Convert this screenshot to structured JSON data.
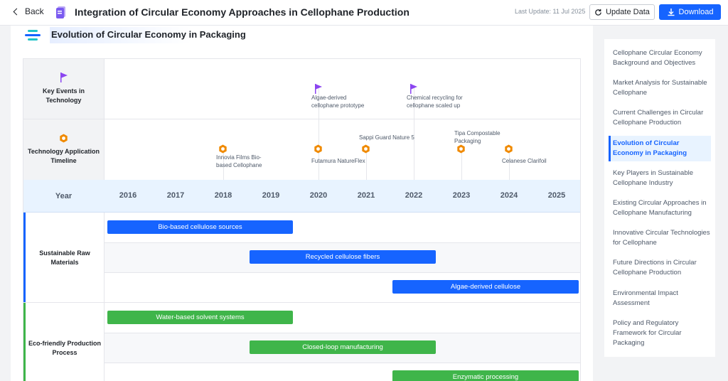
{
  "header": {
    "back_label": "Back",
    "title": "Integration of Circular Economy Approaches in Cellophane Production",
    "last_update": "Last Update: 11 Jul 2025",
    "update_label": "Update Data",
    "download_label": "Download"
  },
  "section": {
    "title": "Evolution of Circular Economy in Packaging"
  },
  "timeline": {
    "row_key_events": "Key Events in Technology",
    "row_application": "Technology Application Timeline",
    "year_label": "Year",
    "years": [
      "2016",
      "2017",
      "2018",
      "2019",
      "2020",
      "2021",
      "2022",
      "2023",
      "2024",
      "2025"
    ],
    "key_events": [
      {
        "line1": "Algae-derived",
        "line2": "cellophane prototype"
      },
      {
        "line1": "Chemical recycling for",
        "line2": "cellophane scaled up"
      }
    ],
    "applications": [
      {
        "line1": "Innovia Films Bio-",
        "line2": "based Cellophane"
      },
      {
        "line1": "Futamura NatureFlex",
        "line2": ""
      },
      {
        "line1": "Sappi Guard Nature 5",
        "line2": ""
      },
      {
        "line1": "Tipa Compostable",
        "line2": "Packaging"
      },
      {
        "line1": "Celanese Clarifoil",
        "line2": ""
      }
    ],
    "categories": [
      {
        "label": "Sustainable Raw Materials",
        "color": "#1664ff",
        "bars": [
          "Bio-based cellulose sources",
          "Recycled cellulose fibers",
          "Algae-derived cellulose"
        ]
      },
      {
        "label": "Eco-friendly Production Process",
        "color": "#3fb54a",
        "bars": [
          "Water-based solvent systems",
          "Closed-loop manufacturing",
          "Enzymatic processing"
        ]
      }
    ],
    "colors": {
      "flag": "#8b45f0",
      "hex": "#f08a00"
    }
  },
  "toc": {
    "items": [
      "Cellophane Circular Economy Background and Objectives",
      "Market Analysis for Sustainable Cellophane",
      "Current Challenges in Circular Cellophane Production",
      "Evolution of Circular Economy in Packaging",
      "Key Players in Sustainable Cellophane Industry",
      "Existing Circular Approaches in Cellophane Manufacturing",
      "Innovative Circular Technologies for Cellophane",
      "Future Directions in Circular Cellophane Production",
      "Environmental Impact Assessment",
      "Policy and Regulatory Framework for Circular Packaging"
    ],
    "active_index": 3
  }
}
